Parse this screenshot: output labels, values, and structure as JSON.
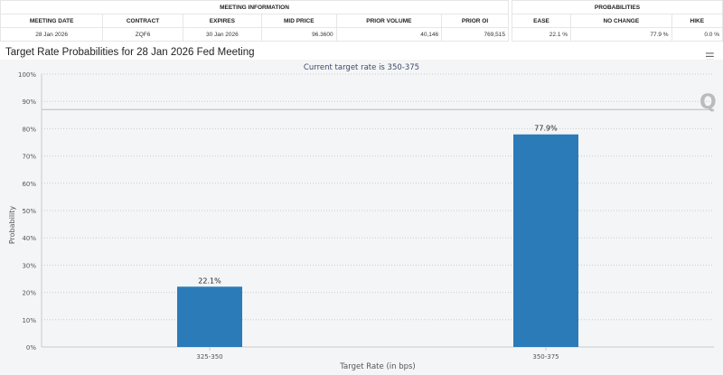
{
  "meeting_info": {
    "header": "MEETING INFORMATION",
    "columns": [
      "MEETING DATE",
      "CONTRACT",
      "EXPIRES",
      "MID PRICE",
      "PRIOR VOLUME",
      "PRIOR OI"
    ],
    "values": [
      "28 Jan 2026",
      "ZQF6",
      "30 Jan 2026",
      "96.3600",
      "40,146",
      "769,515"
    ]
  },
  "probabilities": {
    "header": "PROBABILITIES",
    "columns": [
      "EASE",
      "NO CHANGE",
      "HIKE"
    ],
    "values": [
      "22.1 %",
      "77.9 %",
      "0.0 %"
    ]
  },
  "chart_title": "Target Rate Probabilities for 28 Jan 2026 Fed Meeting",
  "menu_icon": "hamburger-menu-icon",
  "chart_data": {
    "type": "bar",
    "title": "Target Rate Probabilities for 28 Jan 2026 Fed Meeting",
    "subtitle": "Current target rate is 350-375",
    "categories": [
      "325-350",
      "350-375"
    ],
    "values": [
      22.1,
      77.9
    ],
    "data_labels": [
      "22.1%",
      "77.9%"
    ],
    "xlabel": "Target Rate (in bps)",
    "ylabel": "Probability",
    "ylim": [
      0,
      100
    ],
    "yticks": [
      "0%",
      "10%",
      "20%",
      "30%",
      "40%",
      "50%",
      "60%",
      "70%",
      "80%",
      "90%",
      "100%"
    ],
    "grid": true,
    "bar_color": "#2b7bb9"
  }
}
